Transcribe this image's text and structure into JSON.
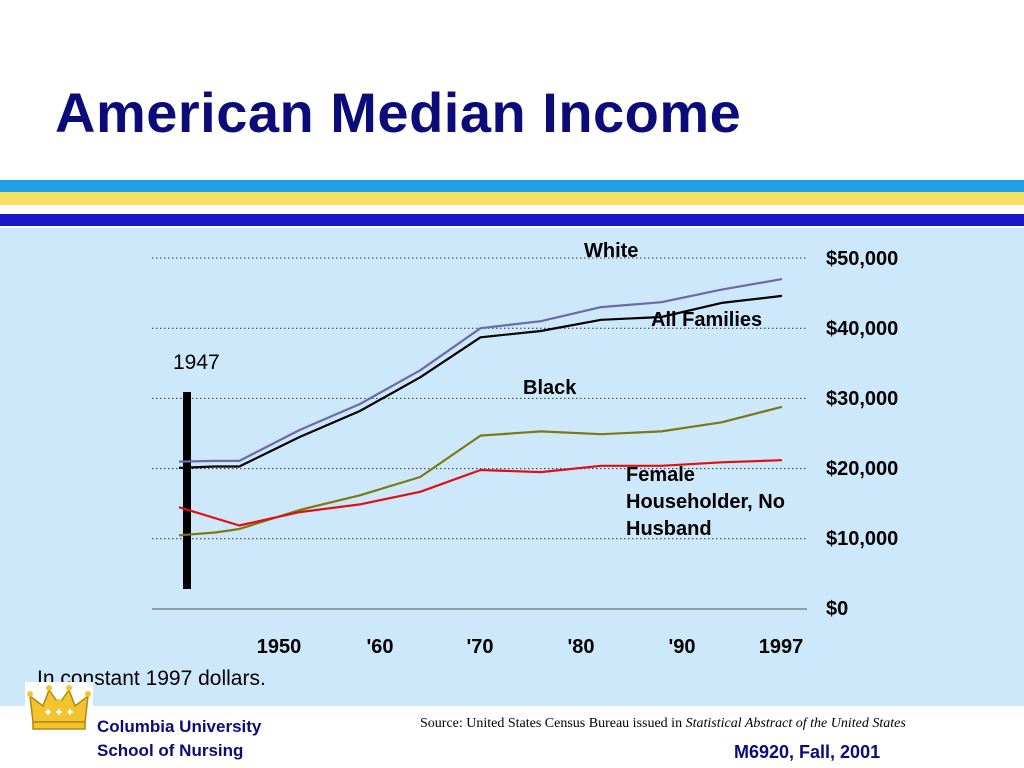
{
  "slide": {
    "title": "American Median Income",
    "note": "In constant 1997 dollars.",
    "marker_label": "1947",
    "institution_line1": "Columbia University",
    "institution_line2": "School of Nursing",
    "source_prefix": "Source: United States Census Bureau issued in ",
    "source_title": "Statistical Abstract of the United States",
    "course": "M6920, Fall, 2001"
  },
  "colors": {
    "title": "#0b0b7a",
    "stripe_sky": "#1ea0e6",
    "stripe_yellow": "#f7e060",
    "stripe_navy": "#1818c8",
    "panel": "#cde8fb",
    "white_series": "#6a6aa8",
    "all_families_series": "#000000",
    "black_series": "#7a7a10",
    "female_series": "#e01010"
  },
  "chart_data": {
    "type": "line",
    "title": "",
    "xlabel": "",
    "ylabel": "",
    "ylim": [
      0,
      50000
    ],
    "xlim": [
      1947,
      1997
    ],
    "grid": true,
    "y_axis_side": "right",
    "y_ticks": [
      "$50,000",
      "$40,000",
      "$30,000",
      "$20,000",
      "$10,000",
      "$0"
    ],
    "y_tick_values": [
      50000,
      40000,
      30000,
      20000,
      10000,
      0
    ],
    "x_ticks": [
      "1950",
      "'60",
      "'70",
      "'80",
      "'90",
      "1997"
    ],
    "x_tick_values": [
      1950,
      1960,
      1970,
      1980,
      1990,
      1997
    ],
    "series": [
      {
        "name": "White",
        "color": "#6a6aa8",
        "x": [
          1947,
          1950,
          1952,
          1957,
          1962,
          1967,
          1972,
          1977,
          1982,
          1987,
          1992,
          1997
        ],
        "values": [
          21000,
          21100,
          21100,
          25500,
          29200,
          34000,
          40000,
          41000,
          43000,
          43700,
          45500,
          47000
        ]
      },
      {
        "name": "All Families",
        "color": "#000000",
        "x": [
          1947,
          1950,
          1952,
          1957,
          1962,
          1967,
          1972,
          1977,
          1982,
          1987,
          1992,
          1997
        ],
        "values": [
          20100,
          20300,
          20300,
          24500,
          28200,
          33000,
          38700,
          39600,
          41200,
          41600,
          43600,
          44600
        ]
      },
      {
        "name": "Black",
        "color": "#7a7a10",
        "x": [
          1947,
          1950,
          1952,
          1957,
          1962,
          1967,
          1972,
          1977,
          1982,
          1987,
          1992,
          1997
        ],
        "values": [
          10500,
          10900,
          11400,
          14100,
          16200,
          18800,
          24700,
          25300,
          24900,
          25300,
          26600,
          28800
        ]
      },
      {
        "name": "Female Householder, No Husband",
        "color": "#e01010",
        "x": [
          1947,
          1952,
          1957,
          1962,
          1967,
          1972,
          1977,
          1982,
          1987,
          1992,
          1997
        ],
        "values": [
          14500,
          11900,
          13800,
          14900,
          16700,
          19800,
          19500,
          20400,
          20400,
          20900,
          21200
        ]
      }
    ],
    "annotations": [
      "1947"
    ]
  }
}
